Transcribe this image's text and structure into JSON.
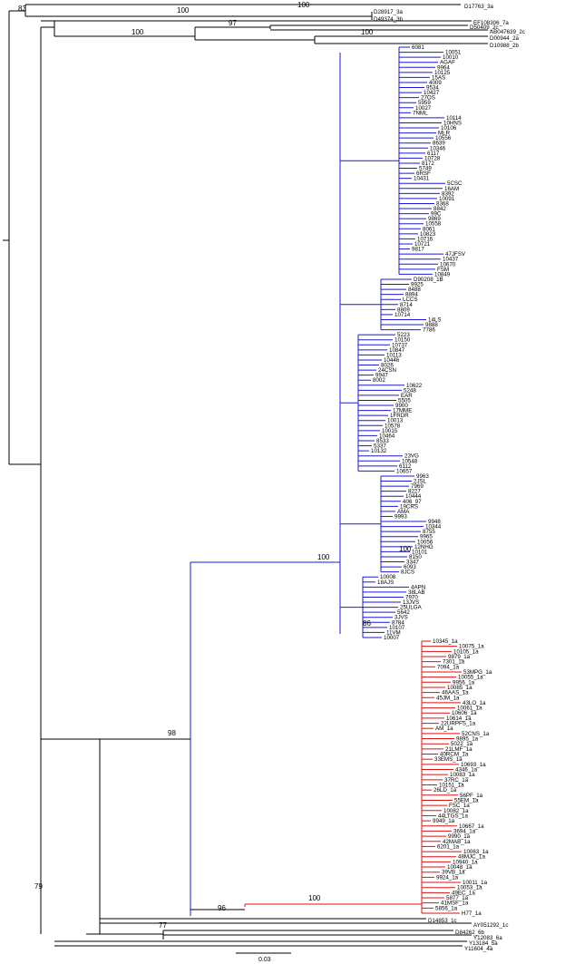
{
  "colors": {
    "blue_clade": "#1a1ad6",
    "red_clade": "#e01010",
    "other": "#000000"
  },
  "black_top_leaves": [
    "D17763_3a",
    "D28917_3a",
    "D49374_3b",
    "EF108306_7a",
    "D50409_2c",
    "AB047639_2c",
    "D00944_2a",
    "D10988_2b"
  ],
  "blue_leaves": [
    "6081",
    "10051",
    "10010",
    "AGAF",
    "9964",
    "10125",
    "15AS",
    "4009",
    "9534",
    "10427",
    "27OS",
    "5959",
    "10027",
    "7NML",
    "10114",
    "10HNS",
    "10106",
    "MLR",
    "10556",
    "8639",
    "10346",
    "6117",
    "10728",
    "8172",
    "5749",
    "6RSF",
    "10431",
    "5CSC",
    "16AM",
    "8392",
    "10091",
    "8368",
    "8842",
    "99C",
    "9869",
    "10558",
    "8061",
    "10823",
    "10716",
    "10721",
    "9817",
    "47JFSV",
    "10437",
    "10670",
    "FSM",
    "10849",
    "D90208_1B",
    "9925",
    "8488",
    "8894",
    "LCCS",
    "8714",
    "8809",
    "10714",
    "14LS",
    "9888",
    "7786",
    "5223",
    "10150",
    "10737",
    "10847",
    "10113",
    "10446",
    "8026",
    "24CSN",
    "9947",
    "8002",
    "10622",
    "5248",
    "EAR",
    "5505",
    "9900",
    "17MME",
    "1FRDR",
    "10013",
    "10578",
    "10015",
    "10464",
    "8533",
    "5337",
    "10132",
    "23VG",
    "10548",
    "6112",
    "10657",
    "9963",
    "2JSL",
    "7969",
    "8227",
    "10444",
    "406_97",
    "19CRS",
    "AMA",
    "9993",
    "9948",
    "10344",
    "8755",
    "9965",
    "10056",
    "12NHG",
    "10101",
    "8150",
    "3347",
    "6093",
    "8JCS",
    "10008",
    "18AJS",
    "4APN",
    "38LAB",
    "7970",
    "13JVS",
    "25ULGA",
    "5642",
    "3JVS",
    "8784",
    "10107",
    "11VM",
    "10007"
  ],
  "red_leaves": [
    "10345_1a",
    "10075_1a",
    "10105_1a",
    "9879_1a",
    "7301_1a",
    "7094_1a",
    "53MPG_1a",
    "10055_1a",
    "9956_1a",
    "10085_1a",
    "46AAS_1a",
    "45JM_1a",
    "43LO_1a",
    "10061_1a",
    "10606_1a",
    "10614_1a",
    "22URPFS_1a",
    "AM_1a",
    "52CNS_1a",
    "9895_1a",
    "5022_1a",
    "21LMF_1a",
    "40RCM_1a",
    "33EMS_1a",
    "10693_1a",
    "4346_1a",
    "10083_1a",
    "37RC_1a",
    "10151_1a",
    "26LD_1a",
    "56PF_1a",
    "55EM_1a",
    "FSC_1a",
    "10082_1a",
    "44LTGS_1a",
    "9949_1a",
    "10667_1a",
    "3694_1a",
    "9990_1a",
    "42MAB_1a",
    "6201_1a",
    "10063_1a",
    "48MJC_1a",
    "10940_1a",
    "10048_1a",
    "39VB_1a",
    "9924_1a",
    "10011_1a",
    "10053_1a",
    "49EC_1a",
    "5877_1a",
    "41MSF_1a",
    "5856_1a",
    "H77_1a"
  ],
  "black_bottom_leaves": [
    "D14853_1c",
    "AY051292_1c",
    "D84262_6b",
    "Y12083_6a",
    "Y13184_5a",
    "Y11604_4a"
  ],
  "bootstrap": [
    "83",
    "100",
    "100",
    "97",
    "100",
    "100",
    "100",
    "100",
    "86",
    "98",
    "96",
    "100",
    "79",
    "77"
  ],
  "scale_label": "0.03"
}
